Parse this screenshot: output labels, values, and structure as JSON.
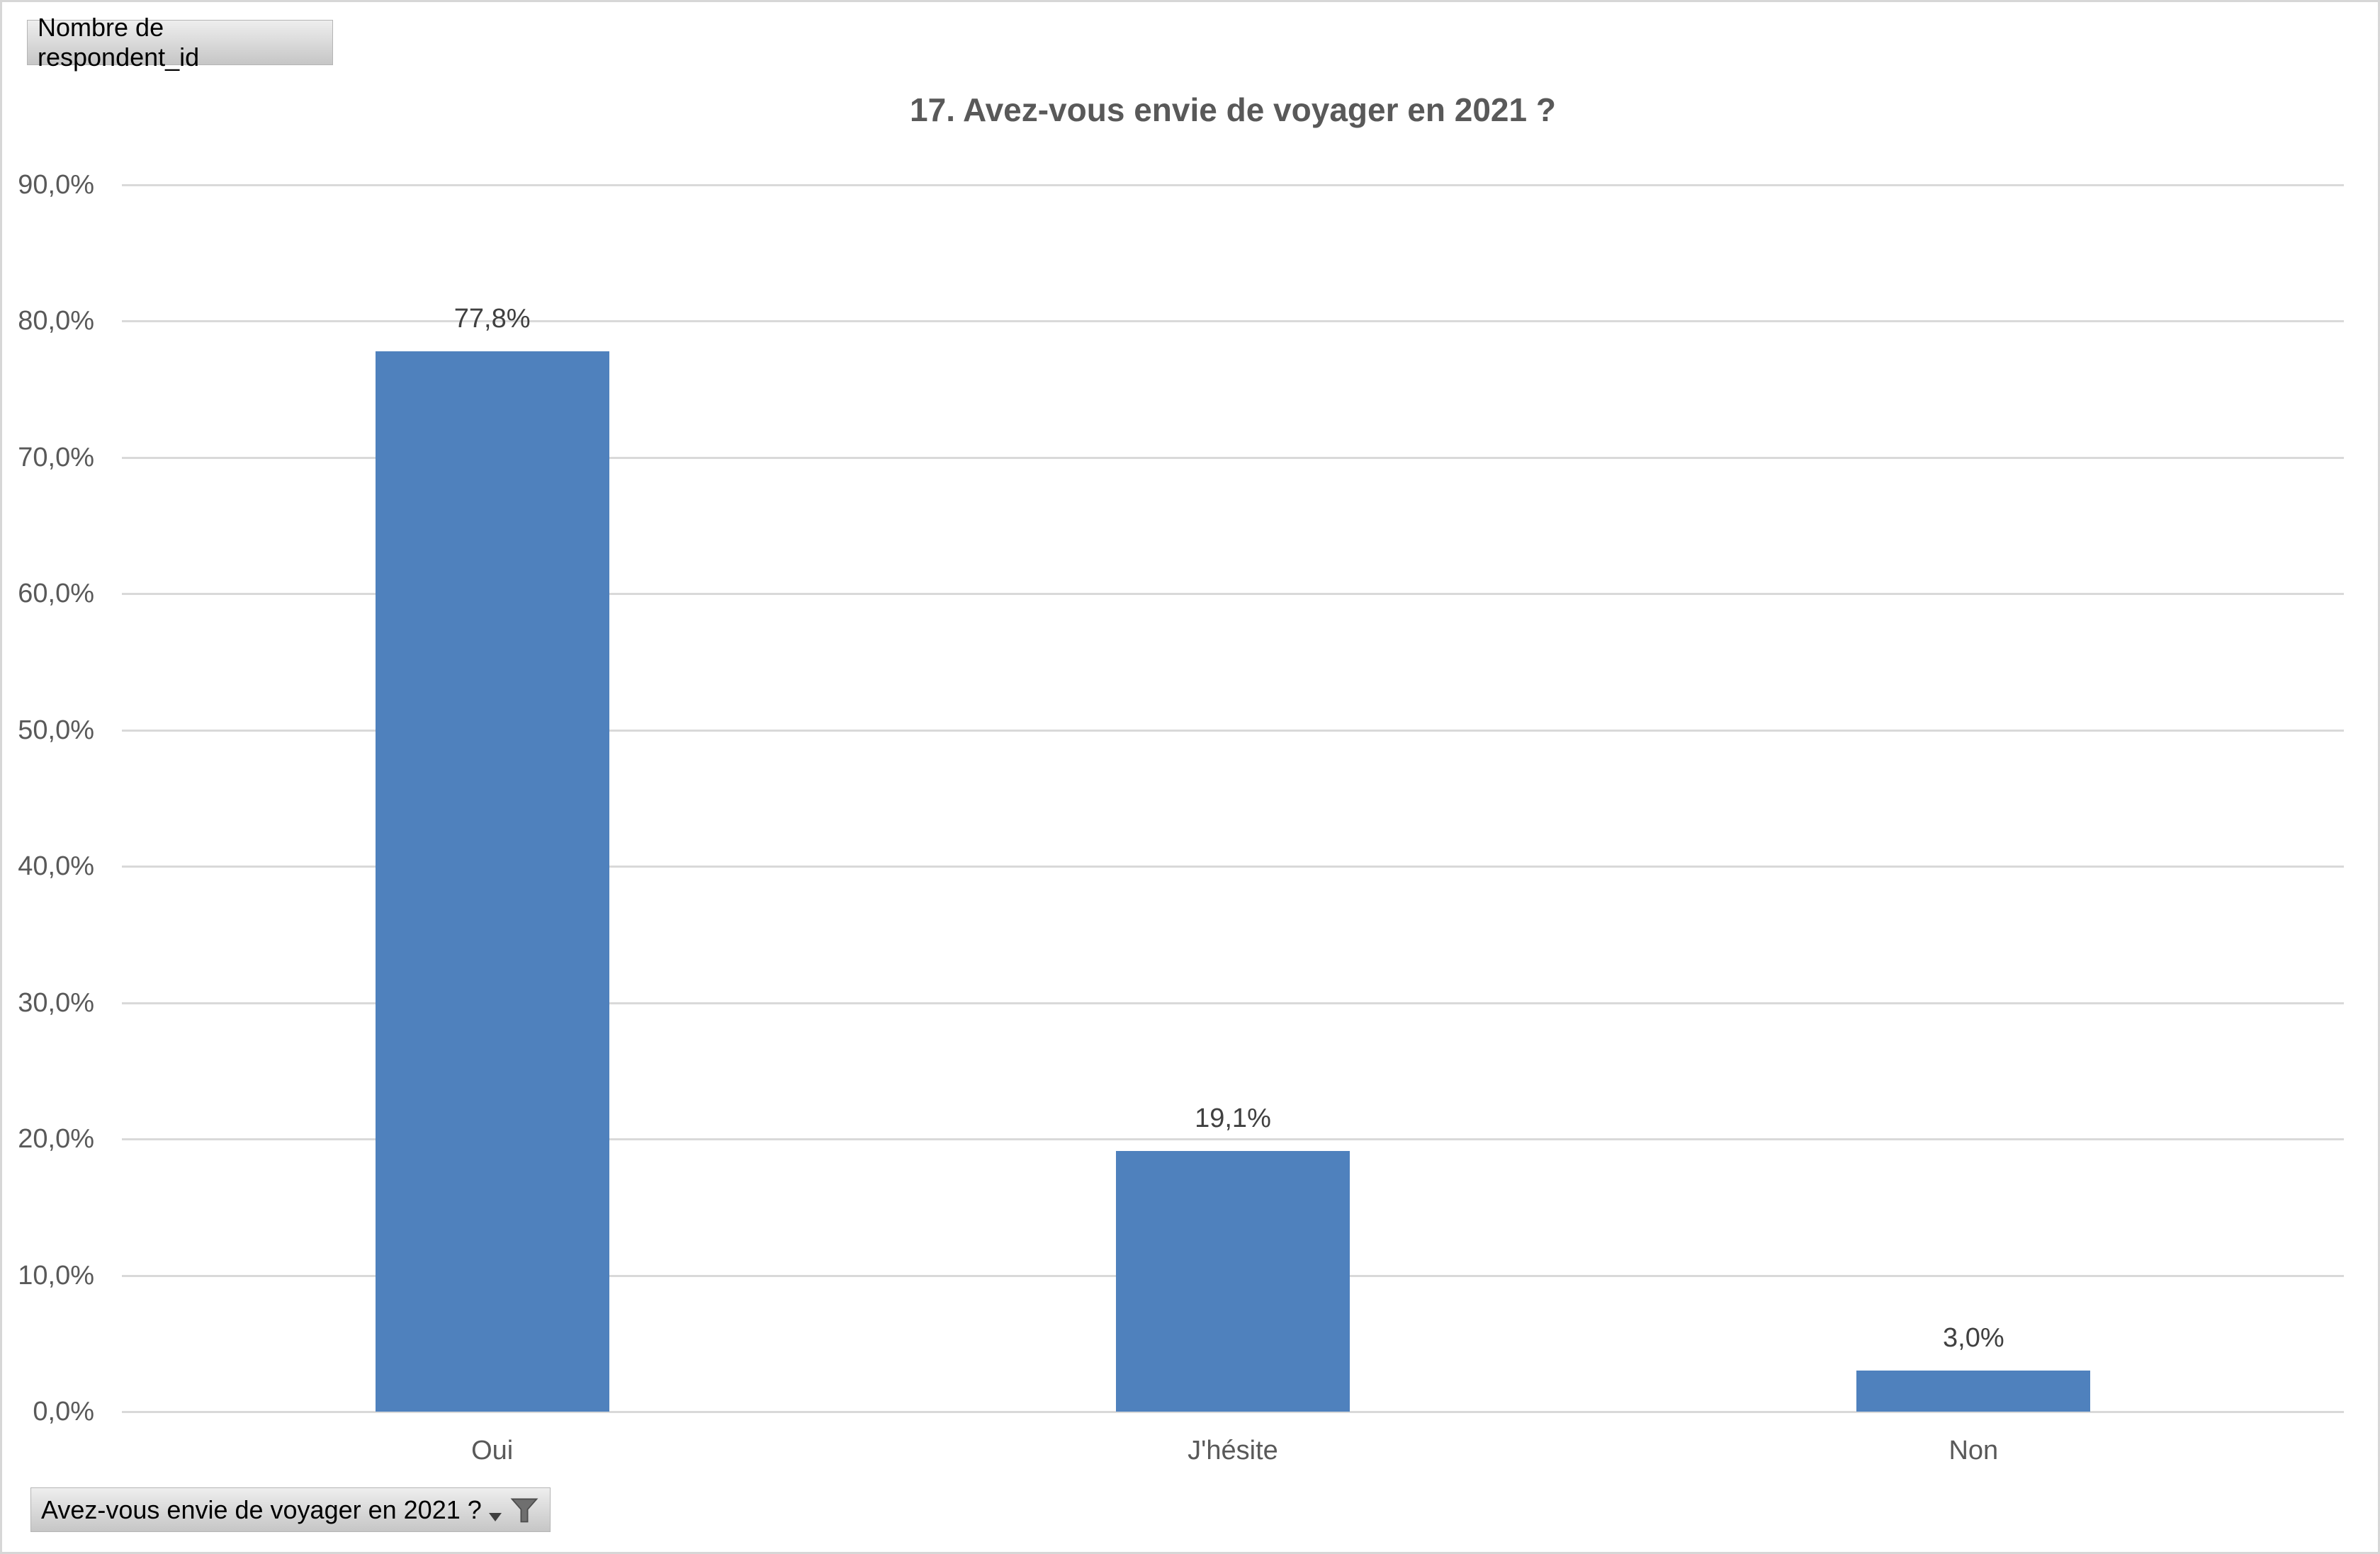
{
  "pivot_field_button": {
    "label": "Nombre de respondent_id"
  },
  "filter_button": {
    "label": "Avez-vous envie de voyager en 2021 ?"
  },
  "chart_data": {
    "type": "bar",
    "title": "17. Avez-vous envie de voyager en 2021 ?",
    "categories": [
      "Oui",
      "J'hésite",
      "Non"
    ],
    "values": [
      77.8,
      19.1,
      3.0
    ],
    "value_labels": [
      "77,8%",
      "19,1%",
      "3,0%"
    ],
    "xlabel": "",
    "ylabel": "",
    "ylim": [
      0,
      90
    ],
    "ytick_step": 10,
    "ytick_labels_top_to_bottom": [
      "90,0%",
      "80,0%",
      "70,0%",
      "60,0%",
      "50,0%",
      "40,0%",
      "30,0%",
      "20,0%",
      "10,0%",
      "0,0%"
    ],
    "grid": "horizontal",
    "legend": "none"
  },
  "colors": {
    "bar": "#4f81bd",
    "gridline": "#d9d9d9",
    "title_text": "#595959",
    "axis_text": "#595959",
    "data_label_text": "#404040",
    "button_text": "#000000"
  }
}
